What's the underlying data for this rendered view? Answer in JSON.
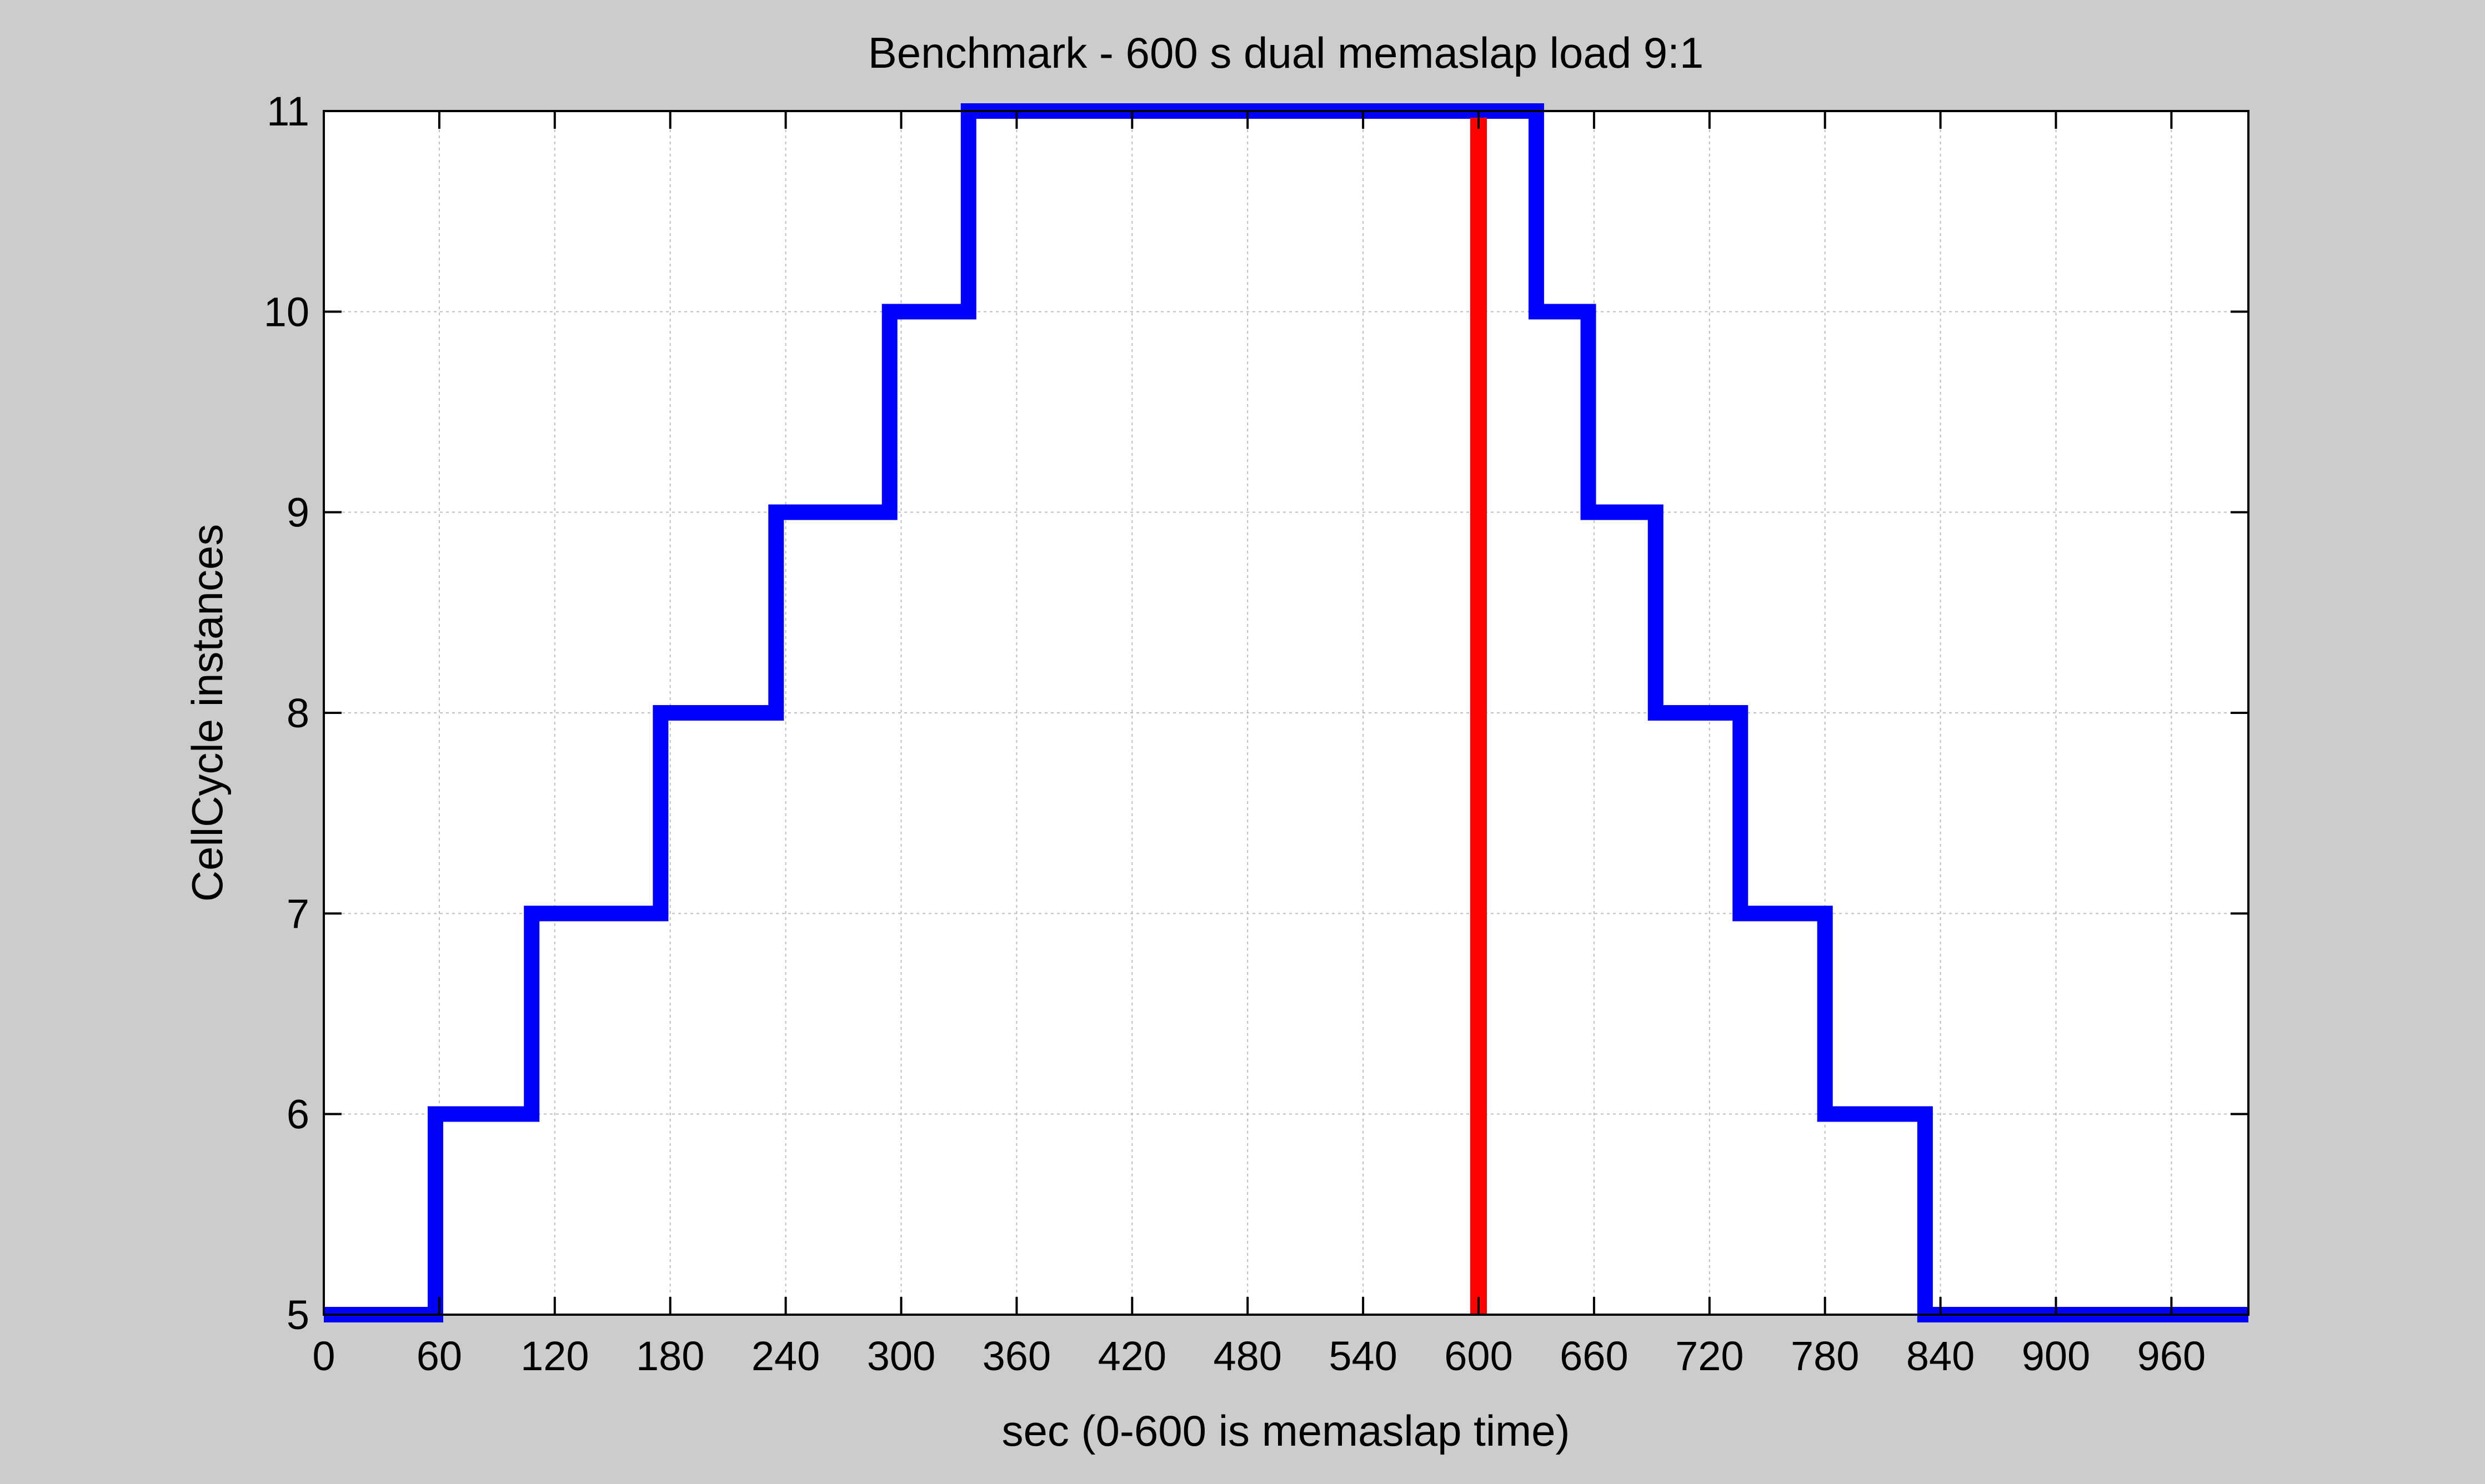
{
  "chart_data": {
    "type": "line",
    "title": "Benchmark - 600 s dual memaslap load 9:1",
    "xlabel": "sec (0-600 is memaslap time)",
    "ylabel": "CellCycle instances",
    "xlim": [
      0,
      1000
    ],
    "ylim": [
      5,
      11
    ],
    "xticks": [
      0,
      60,
      120,
      180,
      240,
      300,
      360,
      420,
      480,
      540,
      600,
      660,
      720,
      780,
      840,
      900,
      960
    ],
    "yticks": [
      5,
      6,
      7,
      8,
      9,
      10,
      11
    ],
    "grid": true,
    "legend": "none",
    "series": [
      {
        "color": "#0000ff",
        "style": "step",
        "x": [
          0,
          58,
          58,
          108,
          108,
          175,
          175,
          235,
          235,
          294,
          294,
          335,
          335,
          630,
          630,
          657,
          657,
          692,
          692,
          736,
          736,
          780,
          780,
          832,
          832,
          1000
        ],
        "y": [
          5,
          5,
          6,
          6,
          7,
          7,
          8,
          8,
          9,
          9,
          10,
          10,
          11,
          11,
          10,
          10,
          9,
          9,
          8,
          8,
          7,
          7,
          6,
          6,
          5,
          5
        ]
      }
    ],
    "vlines": [
      {
        "x": 600,
        "color": "#ff0000"
      }
    ]
  }
}
